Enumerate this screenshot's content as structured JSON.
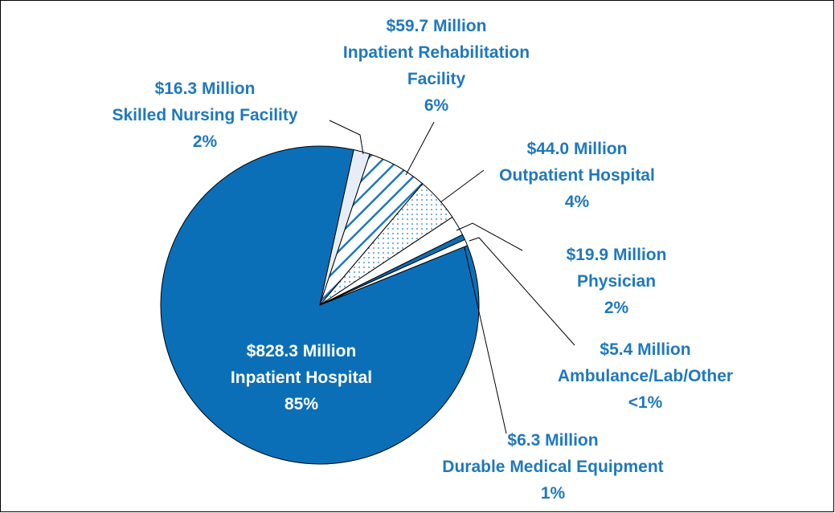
{
  "chart_data": {
    "type": "pie",
    "categories": [
      "Inpatient Hospital",
      "Skilled Nursing Facility",
      "Inpatient Rehabilitation Facility",
      "Outpatient Hospital",
      "Physician",
      "Ambulance/Lab/Other",
      "Durable Medical Equipment"
    ],
    "values": [
      828.3,
      16.3,
      59.7,
      44.0,
      19.9,
      5.4,
      6.3
    ],
    "value_labels": [
      "$828.3 Million",
      "$16.3 Million",
      "$59.7 Million",
      "$44.0 Million",
      "$19.9 Million",
      "$5.4 Million",
      "$6.3 Million"
    ],
    "shares": [
      "85%",
      "2%",
      "6%",
      "4%",
      "2%",
      "<1%",
      "1%"
    ],
    "colors": [
      "#0b6fb8",
      "#e6edf5",
      "#1f78bd",
      "#1f78bd",
      "#ffffff",
      "#0b6fb8",
      "#ffffff"
    ],
    "patterns": [
      "solid",
      "solid",
      "hatch",
      "dots",
      "solid",
      "solid",
      "solid"
    ]
  }
}
